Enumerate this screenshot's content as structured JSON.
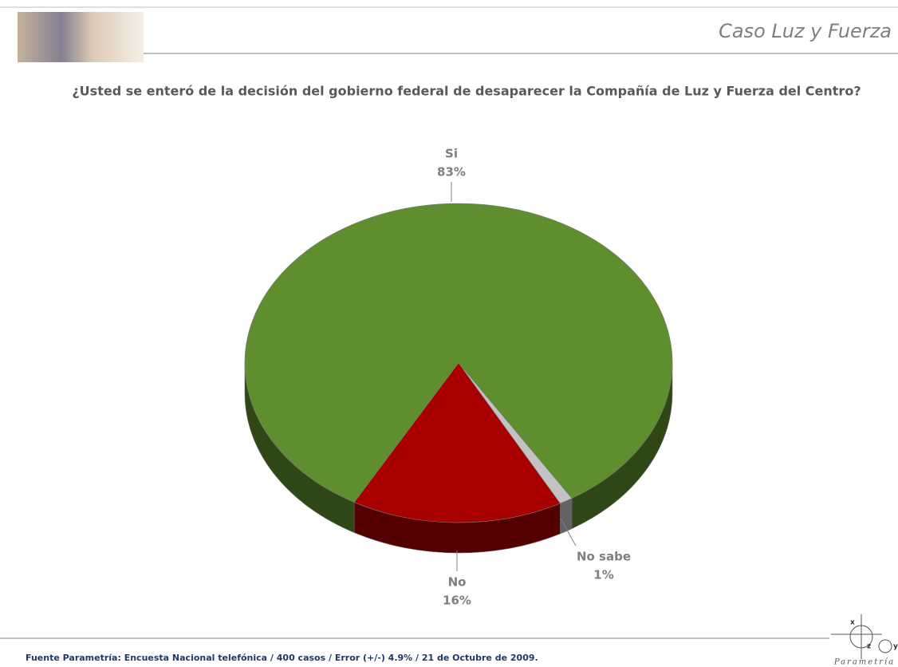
{
  "header": {
    "title": "Caso Luz y Fuerza"
  },
  "chart_data": {
    "type": "pie3d",
    "title": "¿Usted se enteró de la decisión del gobierno federal de desaparecer la Compañía de Luz y Fuerza del Centro?",
    "categories": [
      "Si",
      "No",
      "No sabe"
    ],
    "values": [
      83,
      16,
      1
    ],
    "value_labels": [
      "83%",
      "16%",
      "1%"
    ],
    "colors": [
      "#5e8e2d",
      "#a80000",
      "#c3c3c3"
    ]
  },
  "footer": {
    "source": "Fuente Parametría: Encuesta Nacional telefónica / 400 casos / Error (+/-) 4.9% / 21  de Octubre  de 2009."
  },
  "logo": {
    "name": "Parametría",
    "letters": [
      "x",
      "z",
      "y"
    ]
  }
}
